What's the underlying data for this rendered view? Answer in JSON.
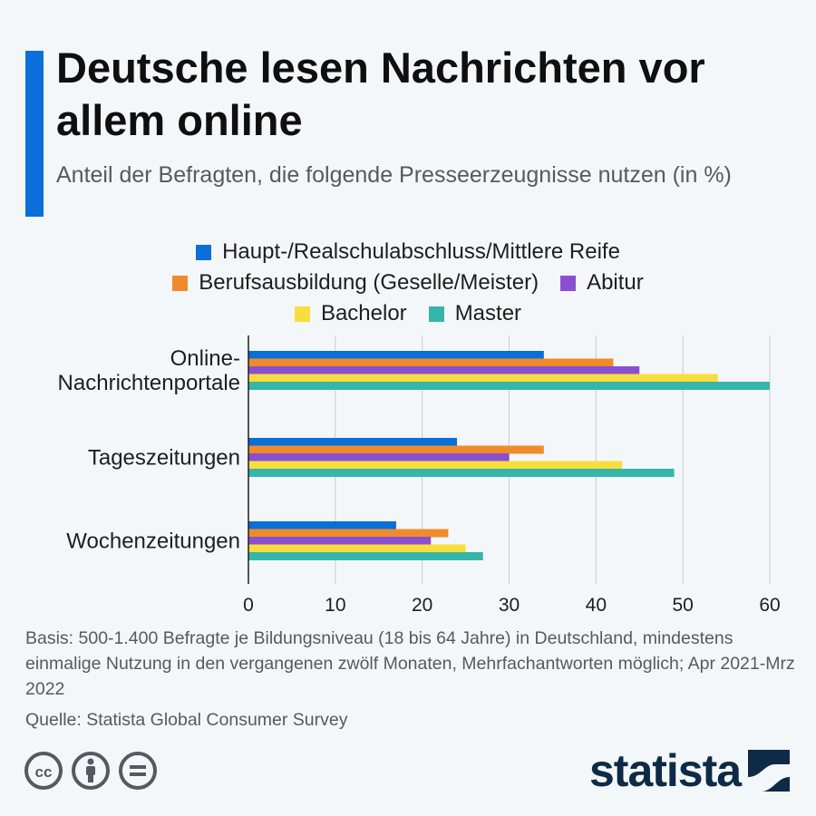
{
  "header": {
    "title": "Deutsche lesen Nachrichten vor allem online",
    "subtitle": "Anteil der Befragten, die folgende Presseerzeugnisse nutzen (in %)",
    "accent_color": "#0a6fd8"
  },
  "legend": {
    "rows": [
      [
        0
      ],
      [
        1,
        2
      ],
      [
        3,
        4
      ]
    ]
  },
  "chart_data": {
    "type": "bar",
    "orientation": "horizontal",
    "title": "Deutsche lesen Nachrichten vor allem online",
    "subtitle": "Anteil der Befragten, die folgende Presseerzeugnisse nutzen (in %)",
    "categories": [
      [
        "Online-",
        "Nachrichtenportale"
      ],
      [
        "Tageszeitungen"
      ],
      [
        "Wochenzeitungen"
      ]
    ],
    "series": [
      {
        "name": "Haupt-/Realschulabschluss/Mittlere Reife",
        "color": "#0a6fd8",
        "values": [
          34,
          24,
          17
        ]
      },
      {
        "name": "Berufsausbildung (Geselle/Meister)",
        "color": "#f08b2c",
        "values": [
          42,
          34,
          23
        ]
      },
      {
        "name": "Abitur",
        "color": "#8a4fd0",
        "values": [
          45,
          30,
          21
        ]
      },
      {
        "name": "Bachelor",
        "color": "#f9dd3c",
        "values": [
          54,
          43,
          25
        ]
      },
      {
        "name": "Master",
        "color": "#35b6aa",
        "values": [
          60,
          49,
          27
        ]
      }
    ],
    "xlim": [
      0,
      60
    ],
    "xticks": [
      "0",
      "10",
      "20",
      "30",
      "40",
      "50",
      "60"
    ],
    "xlabel": "",
    "ylabel": "",
    "grid": true,
    "legend_position": "top"
  },
  "footer": {
    "basis": "Basis: 500-1.400 Befragte je Bildungsniveau (18 bis 64 Jahre) in Deutschland, mindestens einmalige Nutzung in den vergangenen zwölf Monaten, Mehrfachantworten möglich; Apr 2021-Mrz 2022",
    "source": "Quelle: Statista Global Consumer Survey",
    "license_icons": [
      "cc-icon",
      "attribution-icon",
      "no-derivatives-icon"
    ],
    "logo_text": "statista",
    "logo_color": "#0e2a47"
  }
}
